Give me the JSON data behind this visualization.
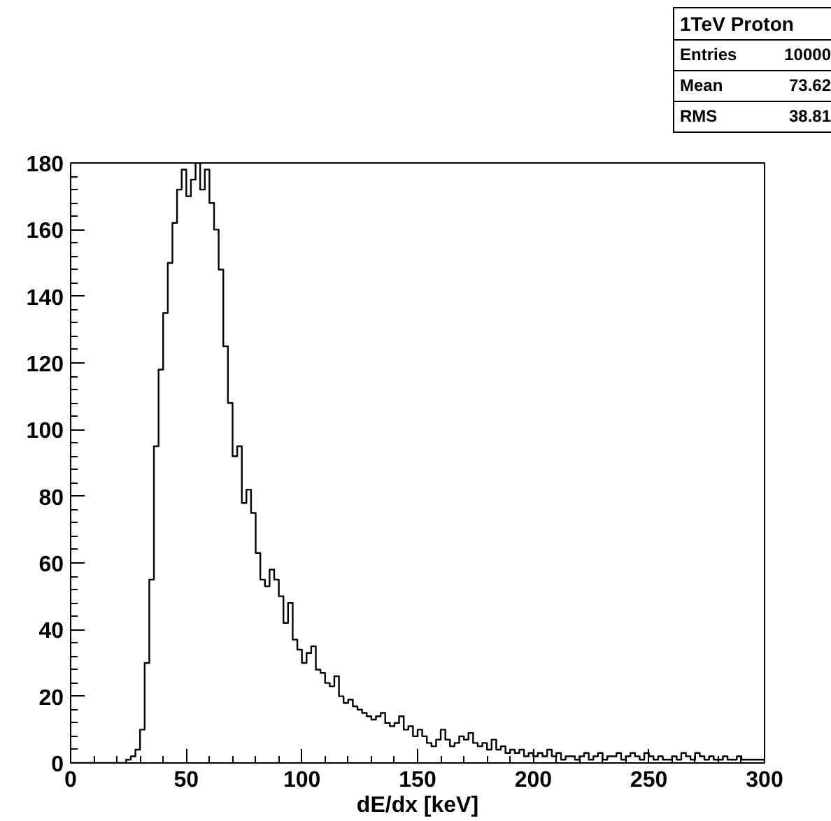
{
  "chart_data": {
    "type": "histogram",
    "title": "1TeV Proton",
    "xlabel": "dE/dx [keV]",
    "annotations": [
      "Entries",
      "10000",
      "Mean",
      "73.62",
      "RMS",
      "38.81"
    ],
    "bins": [
      0,
      2,
      4,
      6,
      8,
      10,
      12,
      14,
      16,
      18,
      20,
      22,
      24,
      26,
      28,
      30,
      32,
      34,
      36,
      38,
      40,
      42,
      44,
      46,
      48,
      50,
      52,
      54,
      56,
      58,
      60,
      62,
      64,
      66,
      68,
      70,
      72,
      74,
      76,
      78,
      80,
      82,
      84,
      86,
      88,
      90,
      92,
      94,
      96,
      98,
      100,
      102,
      104,
      106,
      108,
      110,
      112,
      114,
      116,
      118,
      120,
      122,
      124,
      126,
      128,
      130,
      132,
      134,
      136,
      138,
      140,
      142,
      144,
      146,
      148,
      150,
      152,
      154,
      156,
      158,
      160,
      162,
      164,
      166,
      168,
      170,
      172,
      174,
      176,
      178,
      180,
      182,
      184,
      186,
      188,
      190,
      192,
      194,
      196,
      198,
      200,
      202,
      204,
      206,
      208,
      210,
      212,
      214,
      216,
      218,
      220,
      222,
      224,
      226,
      228,
      230,
      232,
      234,
      236,
      238,
      240,
      242,
      244,
      246,
      248,
      250,
      252,
      254,
      256,
      258,
      260,
      262,
      264,
      266,
      268,
      270,
      272,
      274,
      276,
      278,
      280,
      282,
      284,
      286,
      288,
      290,
      292,
      294,
      296,
      298,
      300
    ],
    "values": [
      0,
      0,
      0,
      0,
      0,
      0,
      0,
      0,
      0,
      0,
      0,
      0,
      1,
      2,
      4,
      10,
      30,
      55,
      95,
      118,
      135,
      150,
      162,
      172,
      178,
      170,
      175,
      180,
      172,
      178,
      168,
      160,
      148,
      125,
      108,
      92,
      95,
      78,
      82,
      75,
      63,
      55,
      53,
      58,
      55,
      50,
      42,
      48,
      37,
      34,
      30,
      33,
      35,
      28,
      27,
      24,
      23,
      26,
      20,
      18,
      19,
      17,
      16,
      15,
      14,
      13,
      14,
      15,
      12,
      11,
      12,
      14,
      10,
      11,
      8,
      10,
      8,
      6,
      5,
      7,
      10,
      7,
      5,
      6,
      8,
      7,
      9,
      6,
      5,
      6,
      4,
      7,
      4,
      5,
      3,
      4,
      3,
      4,
      2,
      3,
      2,
      3,
      2,
      4,
      2,
      3,
      1,
      2,
      2,
      1,
      2,
      3,
      1,
      2,
      3,
      1,
      2,
      2,
      3,
      1,
      2,
      3,
      2,
      1,
      3,
      2,
      1,
      2,
      1,
      1,
      2,
      1,
      3,
      2,
      1,
      3,
      2,
      1,
      2,
      1,
      1,
      2,
      1,
      1,
      2,
      1,
      1,
      1,
      1,
      1
    ],
    "color": "#000000",
    "xlim": [
      0,
      300
    ],
    "xticks": [
      0,
      50,
      100,
      150,
      200,
      250,
      300
    ],
    "ylim": [
      0,
      180
    ],
    "yticks": [
      0,
      20,
      40,
      60,
      80,
      100,
      120,
      140,
      160,
      180
    ],
    "grid": false
  }
}
